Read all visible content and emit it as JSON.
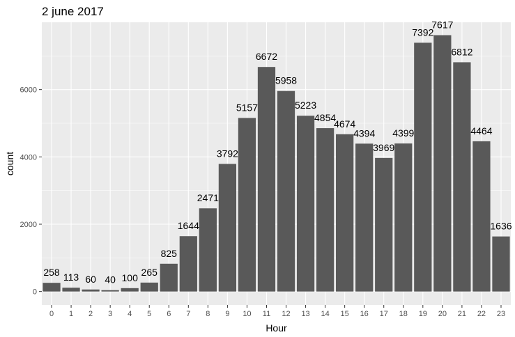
{
  "chart_data": {
    "type": "bar",
    "title": "2 june 2017",
    "xlabel": "Hour",
    "ylabel": "count",
    "categories": [
      "0",
      "1",
      "2",
      "3",
      "4",
      "5",
      "6",
      "7",
      "8",
      "9",
      "10",
      "11",
      "12",
      "13",
      "14",
      "15",
      "16",
      "17",
      "18",
      "19",
      "20",
      "21",
      "22",
      "23"
    ],
    "values": [
      258,
      113,
      60,
      40,
      100,
      265,
      825,
      1644,
      2471,
      3792,
      5157,
      6672,
      5958,
      5223,
      4854,
      4674,
      4394,
      3969,
      4399,
      7392,
      7617,
      6812,
      4464,
      1636
    ],
    "data_labels": [
      "258",
      "113",
      "60",
      "40",
      "100",
      "265",
      "825",
      "1644",
      "2471",
      "3792",
      "5157",
      "6672",
      "5958",
      "5223",
      "4854",
      "4674",
      "4394",
      "3969",
      "4399",
      "7392",
      "7617",
      "6812",
      "4464",
      "1636"
    ],
    "y_ticks": [
      0,
      2000,
      4000,
      6000
    ],
    "y_tick_labels": [
      "0",
      "2000",
      "4000",
      "6000"
    ],
    "ylim": [
      -400,
      8000
    ],
    "grid": true,
    "colors": {
      "panel": "#ebebeb",
      "grid_major": "#ffffff",
      "bar": "#595959",
      "tick": "#333333"
    }
  }
}
